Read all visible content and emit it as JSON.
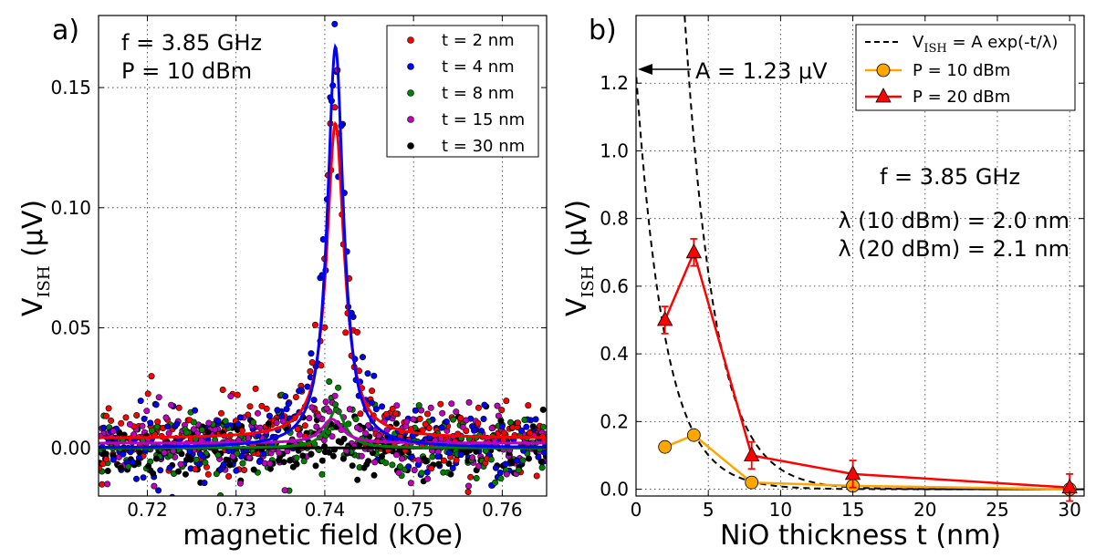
{
  "chart_data": [
    {
      "type": "scatter",
      "panel_label": "a)",
      "xlabel": "magnetic field (kOe)",
      "ylabel_main": "V",
      "ylabel_sub": "ISH",
      "ylabel_unit": " (μV)",
      "xlim": [
        0.7145,
        0.765
      ],
      "ylim": [
        -0.02,
        0.18
      ],
      "xticks": [
        0.72,
        0.73,
        0.74,
        0.75,
        0.76
      ],
      "xtick_labels": [
        "0.72",
        "0.73",
        "0.74",
        "0.75",
        "0.76"
      ],
      "yticks": [
        0.0,
        0.05,
        0.1,
        0.15
      ],
      "ytick_labels": [
        "0.00",
        "0.05",
        "0.10",
        "0.15"
      ],
      "annotations": [
        "f = 3.85 GHz",
        "P = 10 dBm"
      ],
      "legend_position": "top-right",
      "series": [
        {
          "name": "t = 2 nm",
          "color": "#ff0000",
          "center": 0.7412,
          "peak": 0.131,
          "hwhm": 0.0012,
          "offset": 0.004,
          "noise": 0.008
        },
        {
          "name": "t = 4 nm",
          "color": "#0000ff",
          "center": 0.7412,
          "peak": 0.167,
          "hwhm": 0.0011,
          "offset": 0.0,
          "noise": 0.008
        },
        {
          "name": "t = 8 nm",
          "color": "#008000",
          "center": 0.7413,
          "peak": 0.016,
          "hwhm": 0.0012,
          "offset": 0.0,
          "noise": 0.007
        },
        {
          "name": "t = 15 nm",
          "color": "#bf00bf",
          "center": 0.7408,
          "peak": 0.01,
          "hwhm": 0.0014,
          "offset": 0.002,
          "noise": 0.007
        },
        {
          "name": "t = 30 nm",
          "color": "#000000",
          "center": 0.741,
          "peak": 0.0,
          "hwhm": 0.0012,
          "offset": 0.0,
          "noise": 0.006
        }
      ]
    },
    {
      "type": "line",
      "panel_label": "b)",
      "xlabel": "NiO thickness t (nm)",
      "ylabel_main": "V",
      "ylabel_sub": "ISH",
      "ylabel_unit": " (μV)",
      "xlim": [
        0,
        31
      ],
      "ylim": [
        -0.02,
        1.4
      ],
      "xticks": [
        0,
        5,
        10,
        15,
        20,
        25,
        30
      ],
      "xtick_labels": [
        "0",
        "5",
        "10",
        "15",
        "20",
        "25",
        "30"
      ],
      "yticks": [
        0.0,
        0.2,
        0.4,
        0.6,
        0.8,
        1.0,
        1.2
      ],
      "ytick_labels": [
        "0.0",
        "0.2",
        "0.4",
        "0.6",
        "0.8",
        "1.0",
        "1.2"
      ],
      "fit_legend_main": "V",
      "fit_legend_sub": "ISH",
      "fit_legend_rest": " = A exp(-t/λ)",
      "arrow_label": "A = 1.23 μV",
      "annotations": [
        "f = 3.85 GHz",
        "λ (10 dBm) = 2.0 nm",
        "λ (20 dBm) = 2.1 nm"
      ],
      "legend_position": "top-right",
      "fits": [
        {
          "name": "10 dBm fit",
          "A": 1.23,
          "lambda": 2.0
        },
        {
          "name": "20 dBm fit",
          "A": 6.94,
          "lambda": 2.1
        }
      ],
      "series": [
        {
          "name": "P = 10 dBm",
          "color": "#ffa500",
          "marker": "circle",
          "x": [
            2,
            4,
            8,
            15,
            30
          ],
          "y": [
            0.125,
            0.16,
            0.02,
            0.01,
            0.0
          ],
          "err": [
            0,
            0,
            0,
            0.01,
            0.01
          ]
        },
        {
          "name": "P = 20 dBm",
          "color": "#ff0000",
          "marker": "triangle",
          "x": [
            2,
            4,
            8,
            15,
            30
          ],
          "y": [
            0.5,
            0.7,
            0.1,
            0.045,
            0.005
          ],
          "err": [
            0.04,
            0.04,
            0.04,
            0.04,
            0.04
          ]
        }
      ]
    }
  ]
}
